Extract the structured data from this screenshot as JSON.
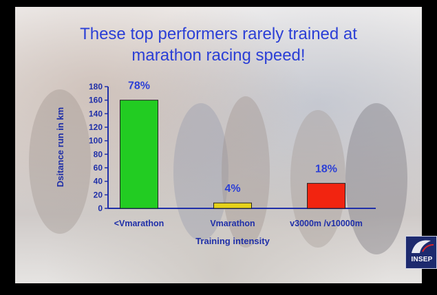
{
  "slide": {
    "title_line1": "These top performers rarely trained at",
    "title_line2": "marathon racing speed!"
  },
  "logo": {
    "text": "INSEP",
    "icon": "insep-logo-icon"
  },
  "chart_data": {
    "type": "bar",
    "categories": [
      "<Vmarathon",
      "Vmarathon",
      "v3000m /v10000m"
    ],
    "values": [
      160,
      8,
      37
    ],
    "data_labels": [
      "78%",
      "4%",
      "18%"
    ],
    "colors": [
      "#22cc22",
      "#e6d21a",
      "#f22410"
    ],
    "xlabel": "Training intensity",
    "ylabel": "Dsitance run in km",
    "ylim": [
      0,
      180
    ],
    "yticks": [
      0,
      20,
      40,
      60,
      80,
      100,
      120,
      140,
      160,
      180
    ],
    "grid": false,
    "legend": "none"
  }
}
